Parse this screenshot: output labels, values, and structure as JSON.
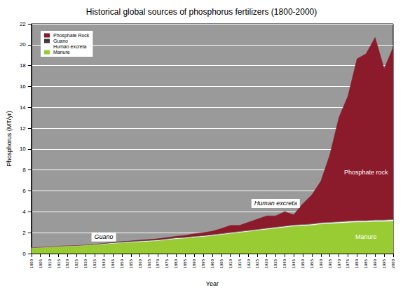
{
  "chart_data": {
    "type": "area",
    "title": "Historical global sources of phosphorus fertilizers (1800-2000)",
    "x_label": "Year",
    "y_label": "Phosphorus (MT/yr)",
    "stacked": true,
    "grid": true,
    "legend": "upper left",
    "categories": [
      1800,
      1805,
      1810,
      1815,
      1820,
      1825,
      1830,
      1835,
      1840,
      1845,
      1850,
      1855,
      1860,
      1865,
      1870,
      1875,
      1880,
      1885,
      1890,
      1895,
      1900,
      1905,
      1910,
      1915,
      1920,
      1925,
      1930,
      1935,
      1940,
      1945,
      1950,
      1955,
      1960,
      1965,
      1970,
      1975,
      1980,
      1985,
      1990,
      1995,
      2000
    ],
    "series": [
      {
        "name": "Phosphate Rock",
        "color": "#8b1a2b",
        "values": [
          0,
          0,
          0,
          0,
          0,
          0,
          0,
          0,
          0,
          0,
          0,
          0,
          0.05,
          0.07,
          0.1,
          0.12,
          0.15,
          0.2,
          0.25,
          0.3,
          0.35,
          0.5,
          0.7,
          0.6,
          0.8,
          1.0,
          1.2,
          1.1,
          1.4,
          1.0,
          2.0,
          2.8,
          4.0,
          6.5,
          10.0,
          12.0,
          15.5,
          16.0,
          17.5,
          14.5,
          16.5
        ]
      },
      {
        "name": "Guano",
        "color": "#3a3a3a",
        "values": [
          0,
          0,
          0,
          0,
          0,
          0,
          0,
          0,
          0.03,
          0.06,
          0.08,
          0.08,
          0.07,
          0.06,
          0.05,
          0.04,
          0.03,
          0.02,
          0.02,
          0.01,
          0.01,
          0,
          0,
          0,
          0,
          0,
          0,
          0,
          0,
          0,
          0,
          0,
          0,
          0,
          0,
          0,
          0,
          0,
          0,
          0,
          0
        ]
      },
      {
        "name": "Human excreta",
        "color": "#ffffff",
        "values": [
          0.05,
          0.05,
          0.05,
          0.05,
          0.05,
          0.05,
          0.05,
          0.06,
          0.06,
          0.06,
          0.06,
          0.07,
          0.07,
          0.07,
          0.07,
          0.08,
          0.08,
          0.08,
          0.08,
          0.09,
          0.09,
          0.09,
          0.1,
          0.1,
          0.1,
          0.1,
          0.11,
          0.11,
          0.11,
          0.12,
          0.12,
          0.12,
          0.13,
          0.13,
          0.13,
          0.14,
          0.14,
          0.14,
          0.15,
          0.15,
          0.15
        ]
      },
      {
        "name": "Manure",
        "color": "#99cc33",
        "values": [
          0.5,
          0.55,
          0.6,
          0.65,
          0.7,
          0.72,
          0.78,
          0.82,
          0.88,
          0.95,
          1.0,
          1.05,
          1.1,
          1.15,
          1.2,
          1.3,
          1.4,
          1.45,
          1.55,
          1.6,
          1.7,
          1.8,
          1.9,
          2.0,
          2.1,
          2.2,
          2.3,
          2.4,
          2.5,
          2.6,
          2.65,
          2.7,
          2.8,
          2.85,
          2.9,
          2.95,
          3.0,
          3.0,
          3.05,
          3.05,
          3.1
        ]
      }
    ],
    "ylim": [
      0,
      22
    ],
    "yticks": [
      0,
      2,
      4,
      6,
      8,
      10,
      12,
      14,
      16,
      18,
      20,
      22
    ],
    "annotations": [
      {
        "text": "Guano",
        "x": 1840,
        "y": 1.6
      },
      {
        "text": "Human excreta",
        "x": 1935,
        "y": 4.8
      },
      {
        "text": "Phosphate rock",
        "x": 1985,
        "y": 7.8
      },
      {
        "text": "Manure",
        "x": 1985,
        "y": 1.6
      }
    ]
  }
}
